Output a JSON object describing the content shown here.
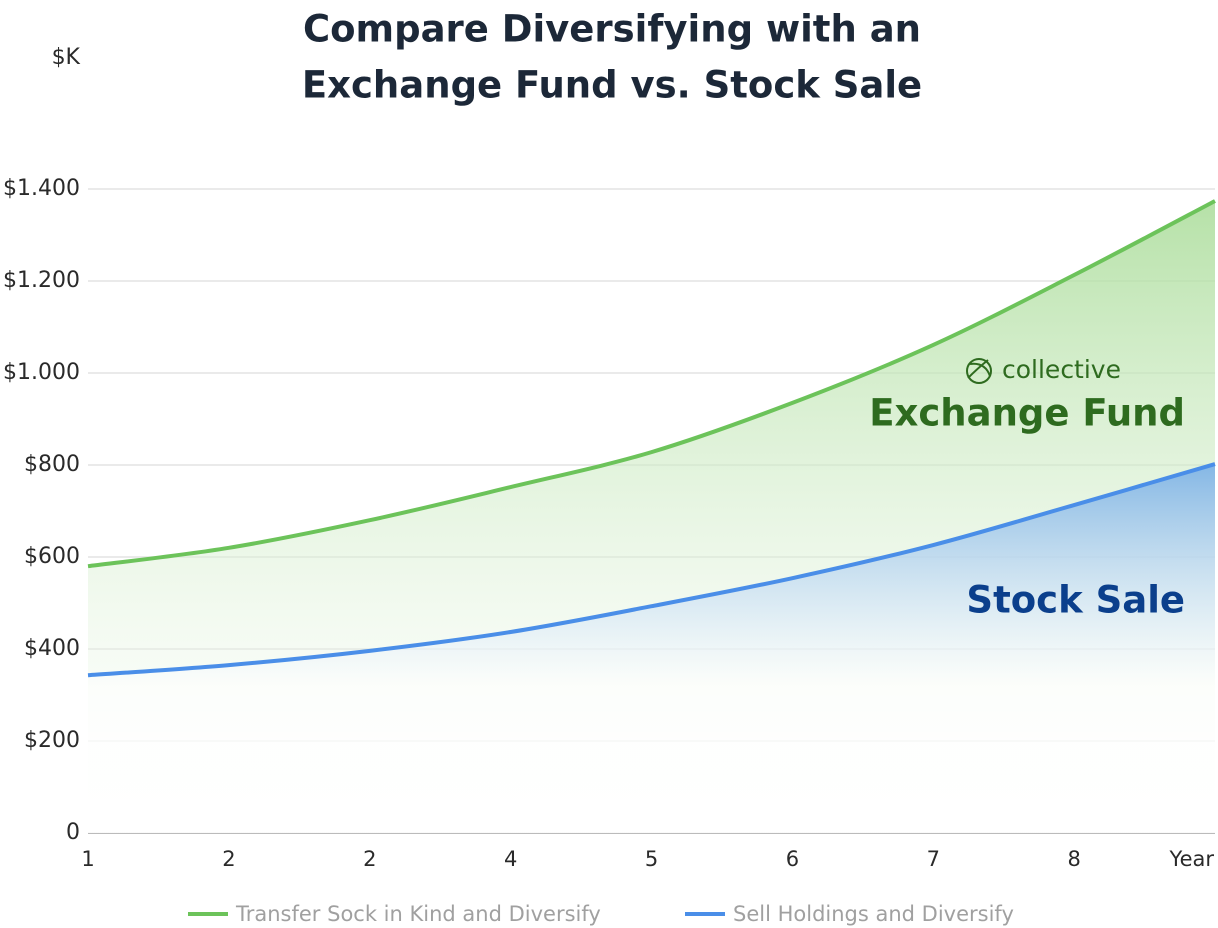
{
  "chart_data": {
    "type": "area",
    "title": [
      "Compare Diversifying with an",
      "Exchange Fund vs. Stock Sale"
    ],
    "y_label": "$K",
    "x_label": "Year",
    "categories": [
      "1",
      "2",
      "2",
      "4",
      "5",
      "6",
      "7",
      "8",
      null
    ],
    "series": [
      {
        "name": "Transfer Sock in Kind and Diversify",
        "color": "#6cc35a",
        "values": [
          580,
          620,
          680,
          752,
          828,
          935,
          1061,
          1213,
          1374
        ]
      },
      {
        "name": "Sell Holdings and Diversify",
        "color": "#4a8ee8",
        "values": [
          343,
          365,
          396,
          437,
          493,
          554,
          626,
          713,
          802
        ]
      }
    ],
    "ylim": [
      0,
      1400
    ],
    "yticks": [
      0,
      {
        "value": 200,
        "label": "$200"
      },
      {
        "value": 400,
        "label": "$400"
      },
      {
        "value": 600,
        "label": "$600"
      },
      {
        "value": 800,
        "label": "$800"
      },
      {
        "value": 1000,
        "label": "$1.000"
      },
      {
        "value": 1200,
        "label": "$1.200"
      },
      {
        "value": 1400,
        "label": "$1.400"
      }
    ],
    "grid": true,
    "annotations": [
      {
        "text": "collective",
        "color": "#2e6b1f"
      },
      {
        "text": "Exchange Fund",
        "color": "#2e6b1f"
      },
      {
        "text": "Stock Sale",
        "color": "#0b3f8c"
      }
    ],
    "legend": "bottom"
  }
}
